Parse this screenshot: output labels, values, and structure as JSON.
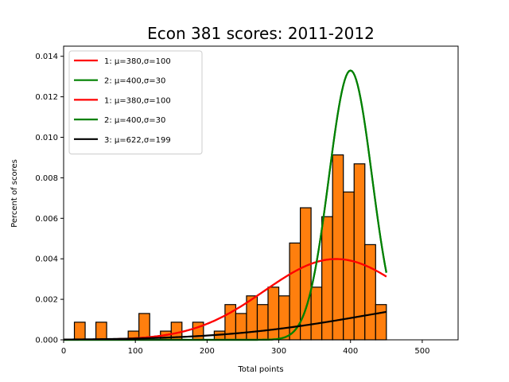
{
  "chart_data": {
    "type": "bar",
    "title": "Econ 381 scores: 2011-2012",
    "xlabel": "Total points",
    "ylabel": "Percent of scores",
    "xlim": [
      0,
      550
    ],
    "ylim": [
      0,
      0.0145
    ],
    "xticks": [
      0,
      100,
      200,
      300,
      400,
      500
    ],
    "xtick_labels": [
      "0",
      "100",
      "200",
      "300",
      "400",
      "500"
    ],
    "yticks": [
      0,
      0.002,
      0.004,
      0.006,
      0.008,
      0.01,
      0.012,
      0.014
    ],
    "ytick_labels": [
      "0.000",
      "0.002",
      "0.004",
      "0.006",
      "0.008",
      "0.010",
      "0.012",
      "0.014"
    ],
    "grid": false,
    "legend_position": "top-left",
    "histogram": {
      "name": "Scores",
      "color": "#ff7f0e",
      "edge_color": "#000000",
      "bin_width": 15,
      "bin_edges": [
        15,
        30,
        45,
        60,
        75,
        90,
        105,
        120,
        135,
        150,
        165,
        180,
        195,
        210,
        225,
        240,
        255,
        270,
        285,
        300,
        315,
        330,
        345,
        360,
        375,
        390,
        405,
        420,
        435,
        450
      ],
      "values": [
        0.00087,
        0,
        0.00087,
        0,
        0,
        0.00043,
        0.0013,
        0,
        0.00043,
        0.00087,
        0,
        0.00087,
        0,
        0.00043,
        0.00174,
        0.0013,
        0.00217,
        0.00174,
        0.0026,
        0.00217,
        0.00478,
        0.00652,
        0.0026,
        0.00608,
        0.00913,
        0.0073,
        0.00869,
        0.0047,
        0.00174
      ]
    },
    "series": [
      {
        "name": "1: μ=380,σ=100",
        "color": "#ff0000",
        "dist": "normal",
        "mu": 380,
        "sigma": 100,
        "x_range": [
          0,
          450
        ]
      },
      {
        "name": "2: μ=400,σ=30",
        "color": "#008000",
        "dist": "normal",
        "mu": 400,
        "sigma": 30,
        "x_range": [
          0,
          450
        ]
      },
      {
        "name": "1: μ=380,σ=100",
        "color": "#ff0000",
        "dist": "normal",
        "mu": 380,
        "sigma": 100,
        "x_range": [
          0,
          450
        ]
      },
      {
        "name": "2: μ=400,σ=30",
        "color": "#008000",
        "dist": "normal",
        "mu": 400,
        "sigma": 30,
        "x_range": [
          0,
          450
        ]
      },
      {
        "name": "3: μ=622,σ=199",
        "color": "#000000",
        "dist": "normal",
        "mu": 622,
        "sigma": 199,
        "x_range": [
          0,
          450
        ]
      }
    ]
  }
}
